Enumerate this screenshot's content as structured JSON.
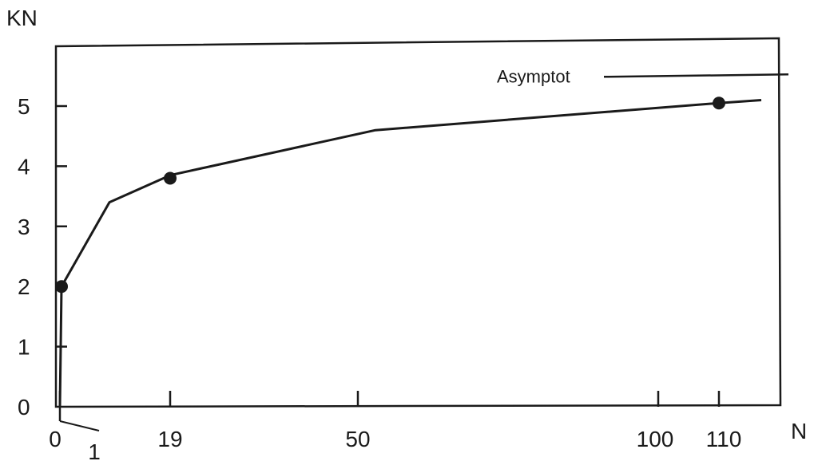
{
  "chart_data": {
    "type": "line",
    "title": "",
    "ylabel": "KN",
    "xlabel": "N",
    "ylim": [
      0,
      5.8
    ],
    "y_ticks": [
      0,
      1,
      2,
      3,
      4,
      5
    ],
    "x_ticks": [
      {
        "value": 0,
        "label": "0"
      },
      {
        "value": 1,
        "label": "1"
      },
      {
        "value": 19,
        "label": "19"
      },
      {
        "value": 50,
        "label": "50"
      },
      {
        "value": 100,
        "label": "100"
      },
      {
        "value": 110,
        "label": "110"
      }
    ],
    "grid": false,
    "series": [
      {
        "x": [
          0,
          1,
          9,
          19,
          53,
          110,
          117
        ],
        "y": [
          0,
          2.0,
          3.4,
          3.85,
          4.6,
          5.05,
          5.1
        ]
      }
    ],
    "markers": [
      {
        "x": 1,
        "y": 2.0
      },
      {
        "x": 19,
        "y": 3.8
      },
      {
        "x": 110,
        "y": 5.05
      }
    ],
    "annotations": [
      {
        "text": "Asymptot",
        "y": 5.5
      }
    ],
    "colors": {
      "line": "#1a1a1a",
      "marker": "#1a1a1a",
      "frame": "#1a1a1a"
    }
  }
}
